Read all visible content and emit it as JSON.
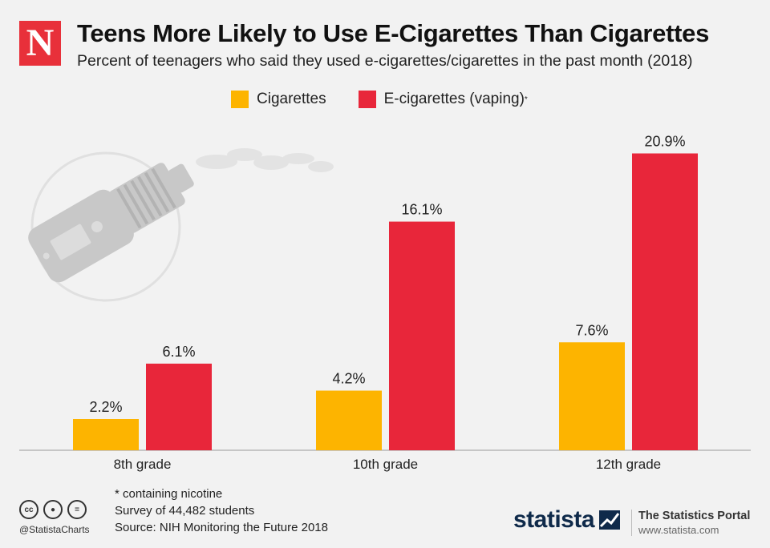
{
  "brand": {
    "logo_letter": "N",
    "handle": "@StatistaCharts",
    "cc_icons": [
      "cc-icon",
      "person-icon",
      "equals-icon"
    ]
  },
  "header": {
    "title": "Teens More Likely to Use E-Cigarettes Than Cigarettes",
    "subtitle": "Percent of teenagers who said they used e-cigarettes/cigarettes in the past month (2018)"
  },
  "legend": {
    "cigarettes": "Cigarettes",
    "ecigarettes": "E-cigarettes (vaping)",
    "ecig_marker": "*"
  },
  "colors": {
    "cigarettes": "#fdb400",
    "ecigarettes": "#e8263a",
    "logo": "#e8303a",
    "illustration": "#cbcbcb"
  },
  "chart_data": {
    "type": "bar",
    "title": "Teens More Likely to Use E-Cigarettes Than Cigarettes",
    "categories": [
      "8th grade",
      "10th grade",
      "12th grade"
    ],
    "series": [
      {
        "name": "Cigarettes",
        "values": [
          2.2,
          4.2,
          7.6
        ],
        "labels": [
          "2.2%",
          "4.2%",
          "7.6%"
        ]
      },
      {
        "name": "E-cigarettes (vaping)",
        "values": [
          6.1,
          16.1,
          20.9
        ],
        "labels": [
          "6.1%",
          "16.1%",
          "20.9%"
        ]
      }
    ],
    "ylim": [
      0,
      22
    ],
    "xlabel": "",
    "ylabel": "",
    "grid": false,
    "legend": "top-center"
  },
  "footer": {
    "note1": "* containing nicotine",
    "note2": "Survey of 44,482 students",
    "source": "Source: NIH Monitoring the Future 2018",
    "statista_word": "statista",
    "portal_title": "The Statistics Portal",
    "portal_url": "www.statista.com"
  }
}
